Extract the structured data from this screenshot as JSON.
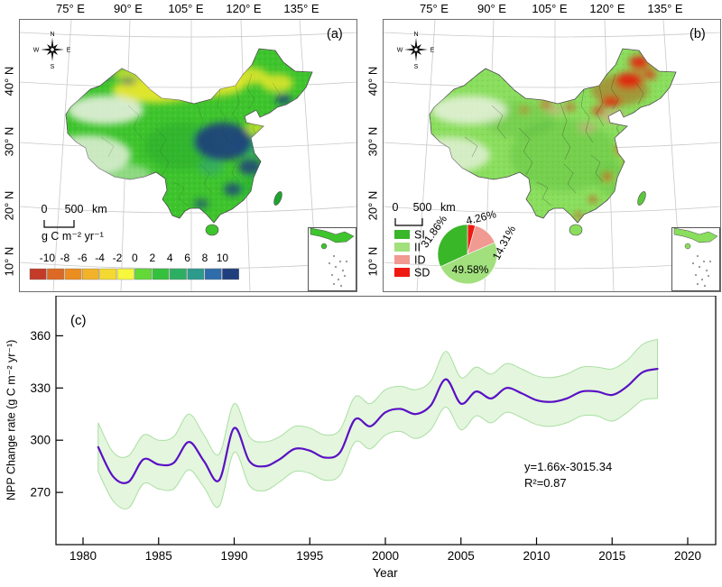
{
  "panel_a": {
    "label": "(a)",
    "top_axis_labels": [
      "75° E",
      "90° E",
      "105° E",
      "120° E",
      "135° E"
    ],
    "left_axis_labels": [
      "40° N",
      "30° N",
      "20° N",
      "10° N"
    ],
    "compass": {
      "n": "N",
      "e": "E",
      "s": "S",
      "w": "W"
    },
    "scalebar": {
      "zero": "0",
      "distance": "500",
      "unit": "km"
    },
    "colorbar_title": "g C m⁻² yr⁻¹"
  },
  "panel_b": {
    "label": "(b)",
    "top_axis_labels": [
      "75° E",
      "90° E",
      "105° E",
      "120° E",
      "135° E"
    ],
    "left_axis_labels": [
      "40° N",
      "30° N",
      "20° N",
      "10° N"
    ],
    "compass": {
      "n": "N",
      "e": "E",
      "s": "S",
      "w": "W"
    },
    "scalebar": {
      "zero": "0",
      "distance": "500",
      "unit": "km"
    },
    "legend": [
      {
        "label": "SI",
        "color": "#3ab629"
      },
      {
        "label": "II",
        "color": "#a2e07e"
      },
      {
        "label": "ID",
        "color": "#f09a92"
      },
      {
        "label": "SD",
        "color": "#ee1a11"
      }
    ]
  },
  "panel_c": {
    "label": "(c)",
    "xlabel": "Year",
    "ylabel": "NPP Change rate (g C m⁻² yr⁻¹)",
    "annotation": {
      "equation": "y=1.66x-3015.34",
      "r2": "R²=0.87"
    }
  },
  "chart_data": [
    {
      "type": "line",
      "title": "NPP change rate time series with confidence band",
      "x": [
        1981,
        1982,
        1983,
        1984,
        1985,
        1986,
        1987,
        1988,
        1989,
        1990,
        1991,
        1992,
        1993,
        1994,
        1995,
        1996,
        1997,
        1998,
        1999,
        2000,
        2001,
        2002,
        2003,
        2004,
        2005,
        2006,
        2007,
        2008,
        2009,
        2010,
        2011,
        2012,
        2013,
        2014,
        2015,
        2016,
        2017,
        2018
      ],
      "series": [
        {
          "name": "NPP change rate",
          "values": [
            296,
            279,
            276,
            289,
            286,
            287,
            299,
            288,
            277,
            307,
            288,
            285,
            289,
            295,
            294,
            290,
            293,
            312,
            308,
            316,
            318,
            315,
            320,
            335,
            321,
            328,
            324,
            330,
            327,
            323,
            322,
            324,
            328,
            328,
            326,
            331,
            339,
            341
          ]
        }
      ],
      "band_halfwidth": [
        14,
        14,
        15,
        14,
        14,
        15,
        16,
        15,
        15,
        14,
        14,
        14,
        13,
        13,
        13,
        13,
        13,
        13,
        13,
        13,
        13,
        14,
        14,
        16,
        15,
        14,
        14,
        14,
        14,
        14,
        14,
        14,
        14,
        14,
        15,
        15,
        16,
        17
      ],
      "xlabel": "Year",
      "ylabel": "NPP Change rate (g C m⁻² yr⁻¹)",
      "xlim": [
        1978.2,
        2021.9
      ],
      "ylim": [
        240,
        383
      ],
      "x_ticks": [
        1980,
        1985,
        1990,
        1995,
        2000,
        2005,
        2010,
        2015,
        2020
      ],
      "y_ticks": [
        270,
        300,
        330,
        360
      ],
      "grid": false,
      "trend": {
        "equation": "y=1.66x-3015.34",
        "r_squared": "R²=0.87",
        "slope": 1.66,
        "intercept": -3015.34
      },
      "line_color": "#5a10c4",
      "band_fill": "#e4f6de",
      "band_edge": "#aadfa2"
    },
    {
      "type": "pie",
      "title": "NPP trend significance classes",
      "labels": [
        "SD",
        "ID",
        "II",
        "SI"
      ],
      "values": [
        4.26,
        14.31,
        49.58,
        31.86
      ],
      "value_labels": [
        "4.26%",
        "14.31%",
        "49.58%",
        "31.86%"
      ],
      "colors": [
        "#ee1a11",
        "#f09a92",
        "#a2e07e",
        "#3ab629"
      ],
      "legend_position": "left of pie"
    },
    {
      "type": "colorbar",
      "title": "g C m⁻² yr⁻¹",
      "ticks": [
        -10,
        -8,
        -6,
        -4,
        -2,
        0,
        2,
        4,
        6,
        8,
        10
      ],
      "colors": [
        "#c43b28",
        "#dc6a24",
        "#ec8d20",
        "#f2b32a",
        "#f4d931",
        "#f7f73d",
        "#63d938",
        "#35c13e",
        "#2daf63",
        "#2d9b8c",
        "#2f6cab",
        "#1f3e7e"
      ]
    }
  ]
}
